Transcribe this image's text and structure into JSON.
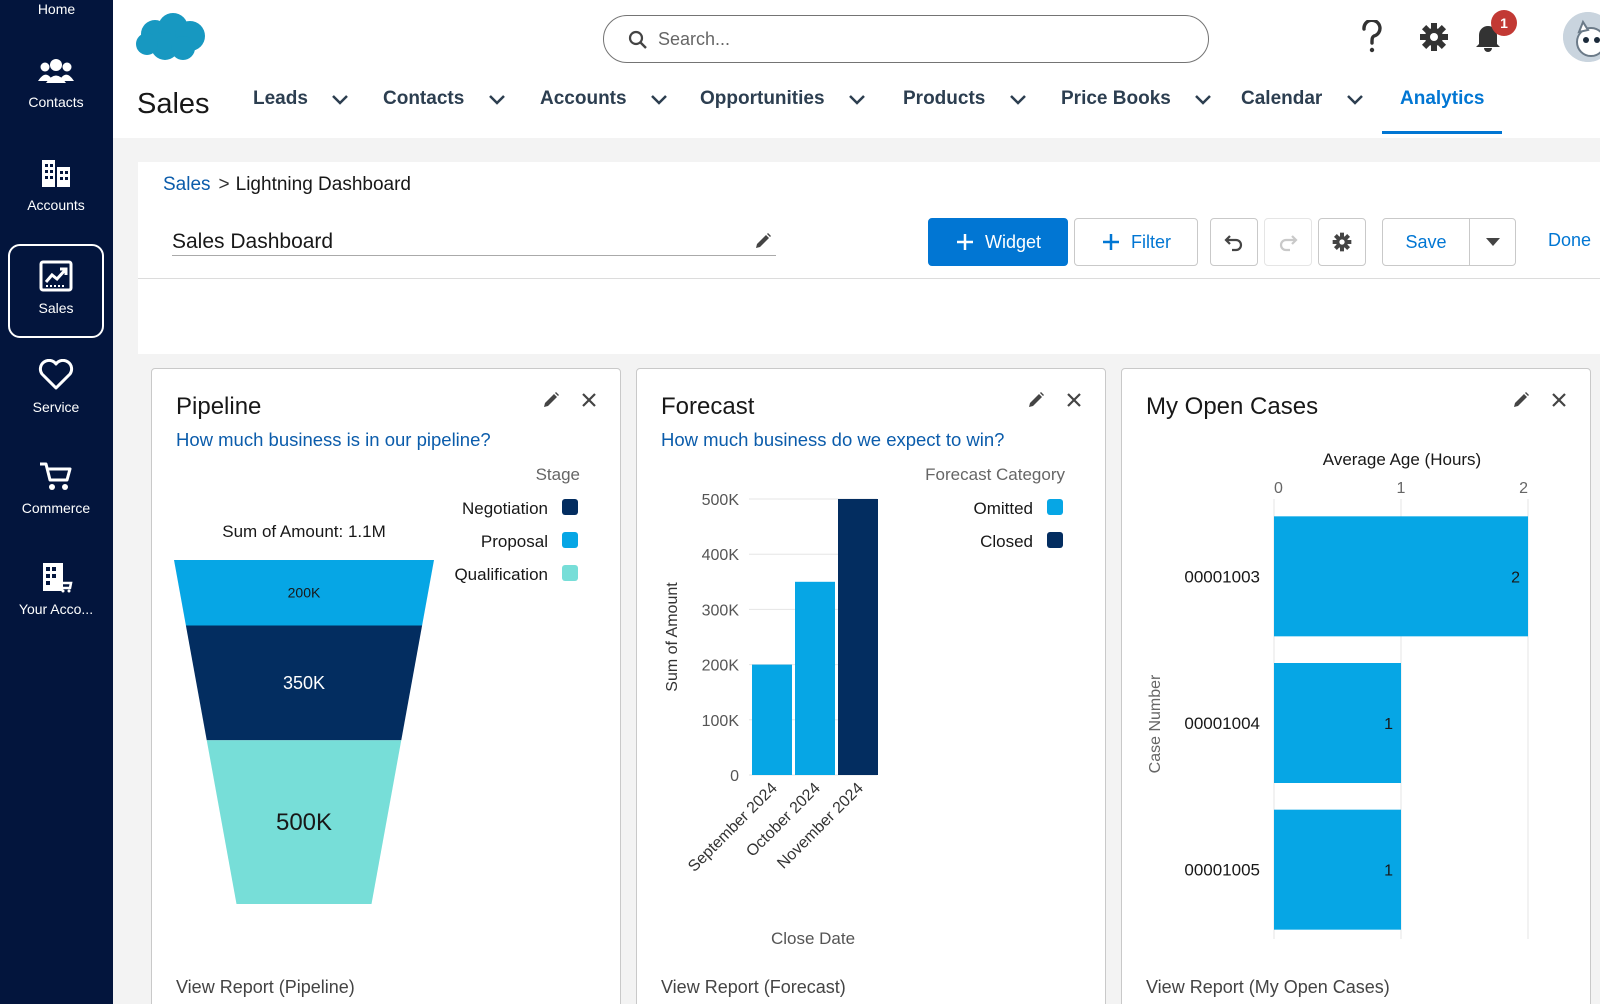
{
  "rail": {
    "home": "Home",
    "items": [
      {
        "label": "Contacts",
        "icon": "contacts-icon"
      },
      {
        "label": "Accounts",
        "icon": "accounts-icon"
      },
      {
        "label": "Sales",
        "icon": "sales-icon"
      },
      {
        "label": "Service",
        "icon": "service-icon"
      },
      {
        "label": "Commerce",
        "icon": "commerce-icon"
      },
      {
        "label": "Your Acco...",
        "icon": "your-account-icon"
      }
    ]
  },
  "header": {
    "search_placeholder": "Search...",
    "notification_count": "1",
    "app_name": "Sales",
    "tabs": [
      {
        "label": "Leads"
      },
      {
        "label": "Contacts"
      },
      {
        "label": "Accounts"
      },
      {
        "label": "Opportunities"
      },
      {
        "label": "Products"
      },
      {
        "label": "Price Books"
      },
      {
        "label": "Calendar"
      },
      {
        "label": "Analytics"
      }
    ]
  },
  "dashboard": {
    "breadcrumb_root": "Sales",
    "breadcrumb_sep": ">",
    "breadcrumb_current": "Lightning Dashboard",
    "name": "Sales Dashboard",
    "widget_label": "Widget",
    "filter_label": "Filter",
    "save_label": "Save",
    "done_label": "Done"
  },
  "widgets": {
    "pipeline": {
      "title": "Pipeline",
      "subtitle": "How much business is in our pipeline?",
      "footer": "View Report (Pipeline)"
    },
    "forecast": {
      "title": "Forecast",
      "subtitle": "How much business do we expect to win?",
      "footer": "View Report (Forecast)"
    },
    "cases": {
      "title": "My Open Cases",
      "footer": "View Report (My Open Cases)"
    }
  },
  "colors": {
    "navy": "#032d60",
    "blue": "#06a6e5",
    "teal": "#77ded8",
    "accent": "#0176d3"
  },
  "chart_data": [
    {
      "type": "funnel",
      "legend_title": "Stage",
      "total_label": "Sum of Amount: 1.1M",
      "categories": [
        "Negotiation",
        "Proposal",
        "Qualification"
      ],
      "values": [
        200000,
        350000,
        500000
      ],
      "value_labels": [
        "200K",
        "350K",
        "500K"
      ],
      "legend": [
        {
          "name": "Negotiation",
          "color": "#032d60"
        },
        {
          "name": "Proposal",
          "color": "#06a6e5"
        },
        {
          "name": "Qualification",
          "color": "#77ded8"
        }
      ]
    },
    {
      "type": "bar",
      "stacked": true,
      "xlabel": "Close Date",
      "ylabel": "Sum of Amount",
      "legend_title": "Forecast Category",
      "categories": [
        "September 2024",
        "October 2024",
        "November 2024"
      ],
      "series": [
        {
          "name": "Omitted",
          "color": "#06a6e5",
          "values": [
            200000,
            350000,
            0
          ]
        },
        {
          "name": "Closed",
          "color": "#032d60",
          "values": [
            0,
            0,
            500000
          ]
        }
      ],
      "ylim": [
        0,
        500000
      ],
      "yticks": [
        "0",
        "100K",
        "200K",
        "300K",
        "400K",
        "500K"
      ]
    },
    {
      "type": "bar",
      "orientation": "horizontal",
      "title": "Average Age (Hours)",
      "ylabel": "Case Number",
      "categories": [
        "00001003",
        "00001004",
        "00001005"
      ],
      "values": [
        2,
        1,
        1
      ],
      "xlim": [
        0,
        2
      ],
      "xticks": [
        "0",
        "1",
        "2"
      ],
      "color": "#06a6e5"
    }
  ]
}
